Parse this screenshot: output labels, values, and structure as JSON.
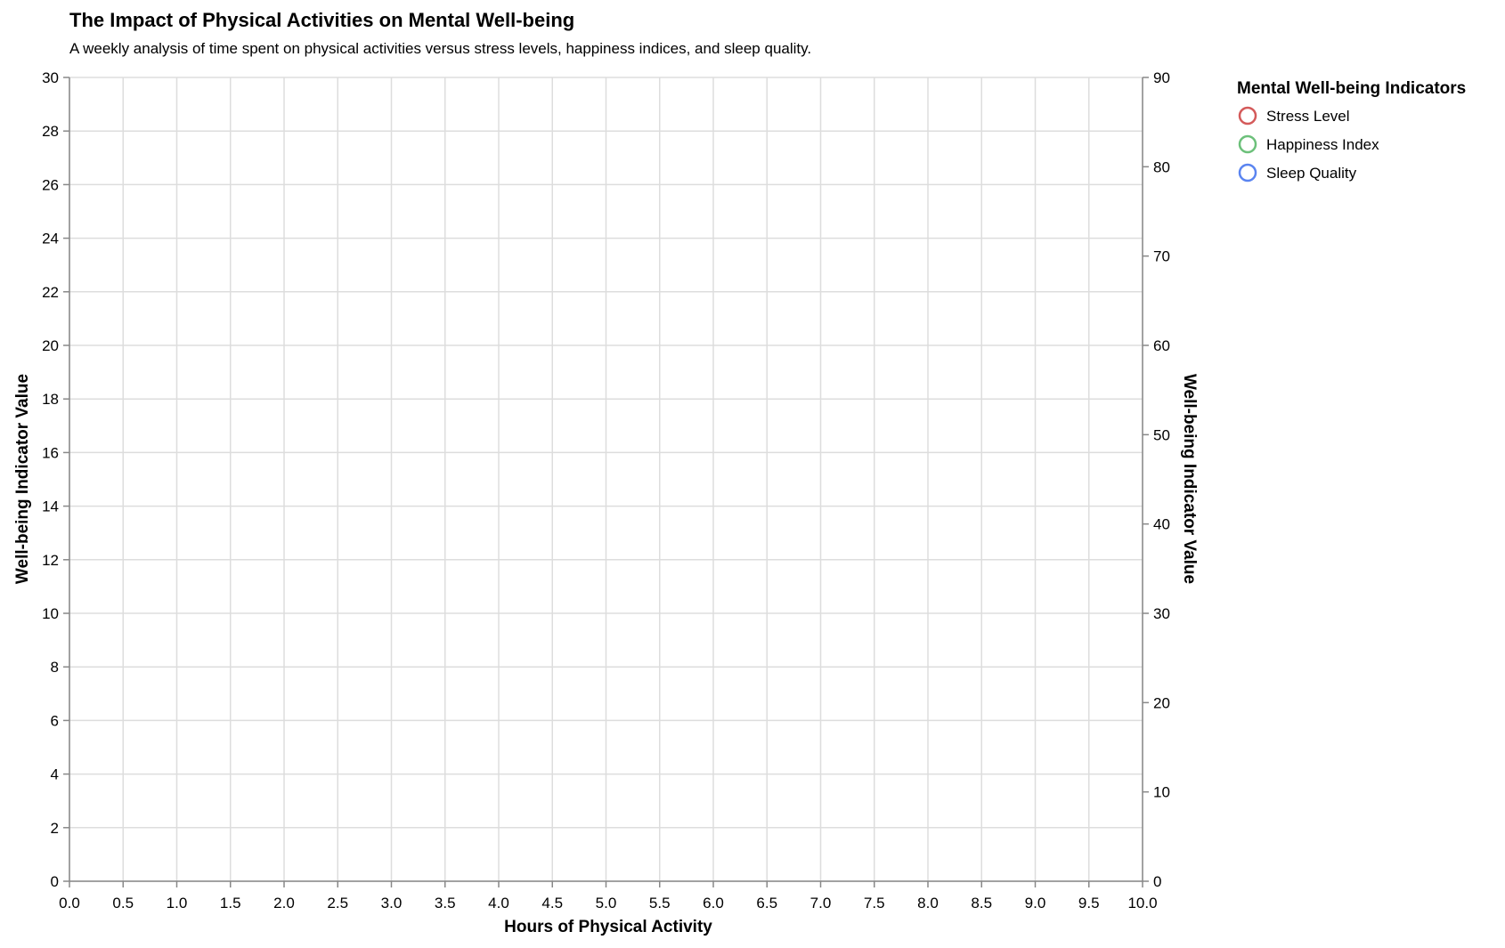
{
  "chart_data": {
    "type": "scatter",
    "title": "The Impact of Physical Activities on Mental Well-being",
    "subtitle": "A weekly analysis of time spent on physical activities versus stress levels, happiness indices, and sleep quality.",
    "xlabel": "Hours of Physical Activity",
    "ylabel_left": "Well-being Indicator Value",
    "ylabel_right": "Well-being Indicator Value",
    "xlim": [
      0,
      10
    ],
    "ylim_left": [
      0,
      30
    ],
    "ylim_right": [
      0,
      90
    ],
    "x_ticks": [
      "0.0",
      "0.5",
      "1.0",
      "1.5",
      "2.0",
      "2.5",
      "3.0",
      "3.5",
      "4.0",
      "4.5",
      "5.0",
      "5.5",
      "6.0",
      "6.5",
      "7.0",
      "7.5",
      "8.0",
      "8.5",
      "9.0",
      "9.5",
      "10.0"
    ],
    "y_left_ticks": [
      "0",
      "2",
      "4",
      "6",
      "8",
      "10",
      "12",
      "14",
      "16",
      "18",
      "20",
      "22",
      "24",
      "26",
      "28",
      "30"
    ],
    "y_right_ticks": [
      "0",
      "10",
      "20",
      "30",
      "40",
      "50",
      "60",
      "70",
      "80",
      "90"
    ],
    "grid": true,
    "legend": {
      "title": "Mental Well-being Indicators",
      "placement": "top-right",
      "items": [
        {
          "label": "Stress Level",
          "color": "#d45a5a"
        },
        {
          "label": "Happiness Index",
          "color": "#6cc07a"
        },
        {
          "label": "Sleep Quality",
          "color": "#5a84f0"
        }
      ]
    },
    "series": [
      {
        "name": "Stress Level",
        "color": "#d45a5a",
        "axis": "left",
        "points": []
      },
      {
        "name": "Happiness Index",
        "color": "#6cc07a",
        "axis": "right",
        "points": []
      },
      {
        "name": "Sleep Quality",
        "color": "#5a84f0",
        "axis": "right",
        "points": []
      }
    ]
  }
}
